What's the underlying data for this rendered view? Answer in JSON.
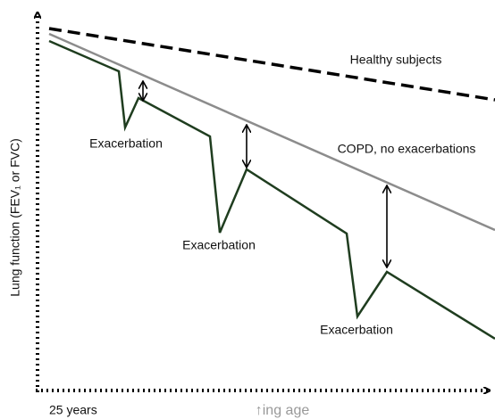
{
  "labels": {
    "healthy": "Healthy subjects",
    "copd": "COPD, no exacerbations",
    "exacerbations": [
      "Exacerbation",
      "Exacerbation",
      "Exacerbation"
    ]
  },
  "axes": {
    "y_label": "Lung function (FEV₁ or FVC)",
    "x_start": "25 years",
    "x_label": "↑ing age"
  }
}
